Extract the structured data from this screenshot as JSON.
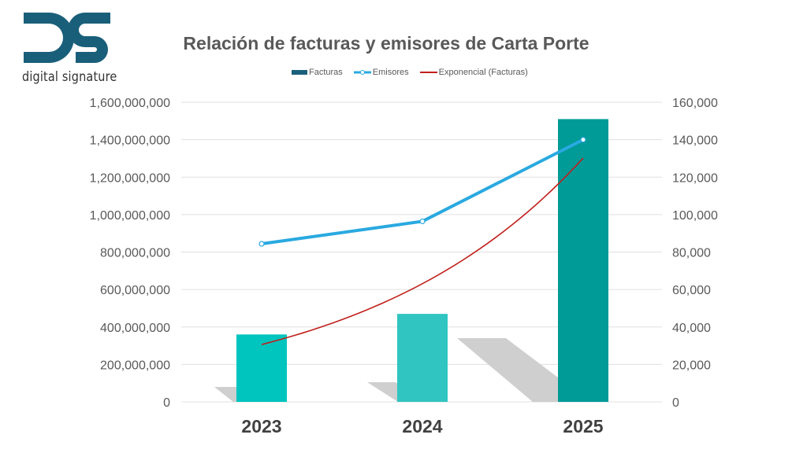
{
  "logo": {
    "text": "digital signature",
    "color": "#1a5f7a"
  },
  "chart_data": {
    "type": "bar",
    "title": "Relación de facturas y emisores de Carta Porte",
    "categories": [
      "2023",
      "2024",
      "2025"
    ],
    "series": [
      {
        "name": "Facturas",
        "type": "bar",
        "axis": "left",
        "values": [
          360000000,
          470000000,
          1510000000
        ],
        "colors": [
          "#00c4be",
          "#30c5c1",
          "#009a97"
        ]
      },
      {
        "name": "Emisores",
        "type": "line",
        "axis": "right",
        "values": [
          84400,
          96400,
          140000
        ],
        "color": "#29a9e0"
      },
      {
        "name": "Exponencial (Facturas)",
        "type": "trendline-exponential",
        "axis": "left",
        "values": [
          306000000,
          630000000,
          1302000000
        ],
        "color": "#c0201c"
      }
    ],
    "y_left": {
      "range": [
        0,
        1600000000
      ],
      "ticks": [
        "0",
        "200,000,000",
        "400,000,000",
        "600,000,000",
        "800,000,000",
        "1,000,000,000",
        "1,200,000,000",
        "1,400,000,000",
        "1,600,000,000"
      ]
    },
    "y_right": {
      "range": [
        0,
        160000
      ],
      "ticks": [
        "0",
        "20,000",
        "40,000",
        "60,000",
        "80,000",
        "100,000",
        "120,000",
        "140,000",
        "160,000"
      ]
    },
    "grid": true,
    "legend": "top",
    "legend_swatch_facturas": "#1a5f7a"
  }
}
